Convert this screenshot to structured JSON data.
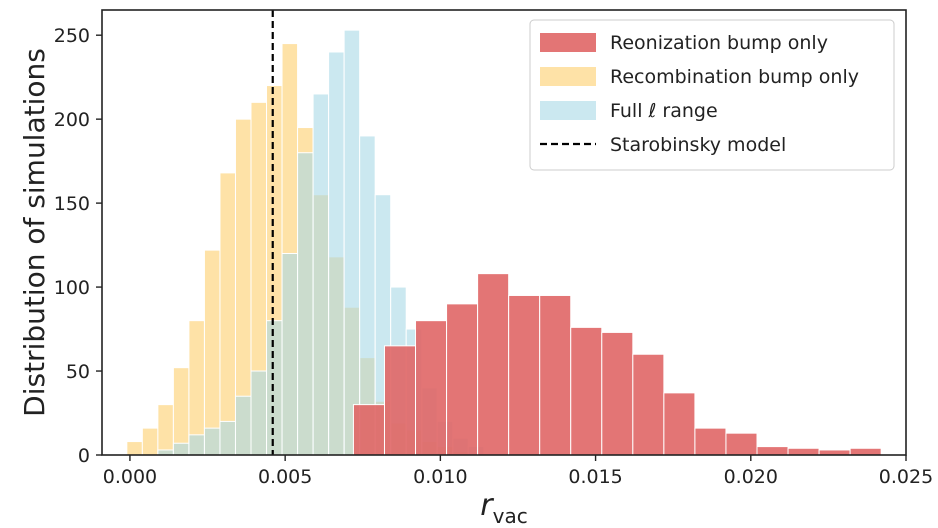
{
  "chart_data": {
    "type": "histogram",
    "title": "",
    "xlabel": "r",
    "xlabel_sub": "vac",
    "ylabel": "Distribution of simulations",
    "xlim": [
      -0.0009,
      0.025
    ],
    "ylim": [
      0,
      265
    ],
    "xticks": [
      0.0,
      0.005,
      0.01,
      0.015,
      0.02,
      0.025
    ],
    "xtick_labels": [
      "0.000",
      "0.005",
      "0.010",
      "0.015",
      "0.020",
      "0.025"
    ],
    "yticks": [
      0,
      50,
      100,
      150,
      200,
      250
    ],
    "ytick_labels": [
      "0",
      "50",
      "100",
      "150",
      "200",
      "250"
    ],
    "grid": false,
    "legend_position": "top-right",
    "series": [
      {
        "name": "Recombination bump only",
        "color": "#fdd88a",
        "opacity": 0.75,
        "bin_edges": [
          -0.0001,
          0.0004,
          0.0009,
          0.0014,
          0.0019,
          0.0024,
          0.0029,
          0.0034,
          0.0039,
          0.0044,
          0.0049,
          0.0054,
          0.0059,
          0.0064,
          0.0069,
          0.0074,
          0.0079,
          0.0084,
          0.0089,
          0.0094,
          0.0099,
          0.0104,
          0.0109
        ],
        "counts": [
          8,
          16,
          30,
          52,
          80,
          122,
          168,
          200,
          210,
          220,
          245,
          195,
          155,
          118,
          88,
          58,
          32,
          19,
          15,
          8,
          5,
          2
        ]
      },
      {
        "name": "Full ℓ range",
        "color": "#a8d8e6",
        "opacity": 0.6,
        "bin_edges": [
          0.0009,
          0.0014,
          0.0019,
          0.0024,
          0.0029,
          0.0034,
          0.0039,
          0.0044,
          0.0049,
          0.0054,
          0.0059,
          0.0064,
          0.0069,
          0.0074,
          0.0079,
          0.0084,
          0.0089,
          0.0094,
          0.0099,
          0.0104,
          0.0109,
          0.0114
        ],
        "counts": [
          3,
          7,
          12,
          16,
          20,
          35,
          50,
          80,
          120,
          180,
          215,
          240,
          253,
          190,
          155,
          100,
          75,
          40,
          20,
          10,
          5
        ]
      },
      {
        "name": "Reonization bump only",
        "color": "#e06666",
        "opacity": 0.9,
        "bin_edges": [
          0.0072,
          0.0082,
          0.0092,
          0.0102,
          0.0112,
          0.0122,
          0.0132,
          0.0142,
          0.0152,
          0.0162,
          0.0172,
          0.0182,
          0.0192,
          0.0202,
          0.0212,
          0.0222,
          0.0232,
          0.0242
        ],
        "counts": [
          30,
          65,
          80,
          90,
          108,
          95,
          95,
          76,
          73,
          60,
          37,
          16,
          13,
          5,
          4,
          3,
          4
        ]
      }
    ],
    "reference_lines": [
      {
        "name": "Starobinsky model",
        "x": 0.0046,
        "style": "dashed",
        "color": "#000000"
      }
    ],
    "legend_order": [
      "Reonization bump only",
      "Recombination bump only",
      "Full ℓ range",
      "Starobinsky model"
    ]
  }
}
